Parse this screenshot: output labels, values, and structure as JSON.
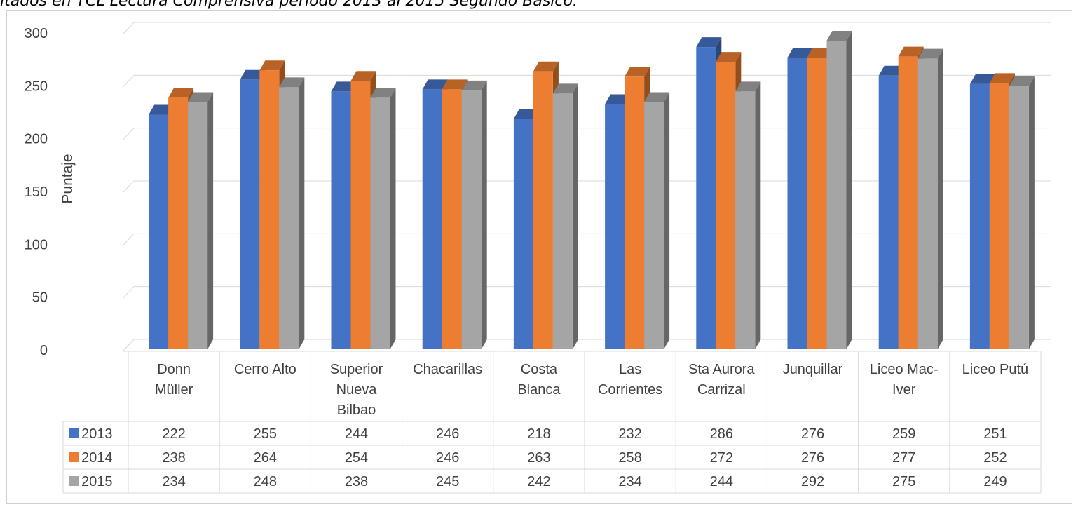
{
  "caption": "ltados en TCL Lectura Comprensiva período 2013 al 2015 Segundo Básico.",
  "chart_data": {
    "type": "bar",
    "ylabel": "Puntaje",
    "xlabel": "",
    "ylim": [
      0,
      300
    ],
    "yticks": [
      0,
      50,
      100,
      150,
      200,
      250,
      300
    ],
    "categories": [
      [
        "Donn",
        "Müller"
      ],
      [
        "Cerro Alto"
      ],
      [
        "Superior",
        "Nueva",
        "Bilbao"
      ],
      [
        "Chacarillas"
      ],
      [
        "Costa",
        "Blanca"
      ],
      [
        "Las",
        "Corrientes"
      ],
      [
        "Sta Aurora",
        "Carrizal"
      ],
      [
        "Junquillar"
      ],
      [
        "Liceo Mac-",
        "Iver"
      ],
      [
        "Liceo Putú"
      ]
    ],
    "series": [
      {
        "name": "2013",
        "color": "#4472C4",
        "values": [
          222,
          255,
          244,
          246,
          218,
          232,
          286,
          276,
          259,
          251
        ]
      },
      {
        "name": "2014",
        "color": "#ED7D31",
        "values": [
          238,
          264,
          254,
          246,
          263,
          258,
          272,
          276,
          277,
          252
        ]
      },
      {
        "name": "2015",
        "color": "#A5A5A5",
        "values": [
          234,
          248,
          238,
          245,
          242,
          234,
          244,
          292,
          275,
          249
        ]
      }
    ],
    "grid": true,
    "legend": "data-table",
    "style": "3d-clustered-column"
  }
}
